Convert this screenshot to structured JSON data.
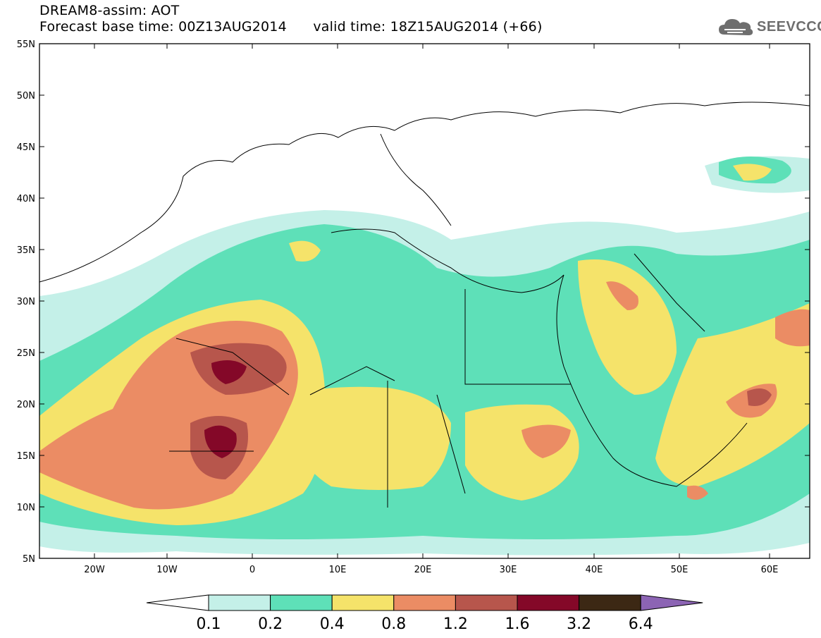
{
  "header": {
    "title": "DREAM8-assim: AOT",
    "base_label": "Forecast base time: 00Z13AUG2014",
    "valid_label": "valid time: 18Z15AUG2014 (+66)"
  },
  "logo": {
    "text": "SEEVCCC",
    "icon": "cloud-icon"
  },
  "map": {
    "lon_ticks": [
      "20W",
      "10W",
      "0",
      "10E",
      "20E",
      "30E",
      "40E",
      "50E",
      "60E"
    ],
    "lat_ticks": [
      "55N",
      "50N",
      "45N",
      "40N",
      "35N",
      "30N",
      "25N",
      "20N",
      "15N",
      "10N",
      "5N"
    ]
  },
  "legend": {
    "colors": [
      "#ffffff",
      "#c4f0e8",
      "#5ee0b8",
      "#f5e36a",
      "#eb8c64",
      "#b7564c",
      "#840828",
      "#3c2814",
      "#8c64b4"
    ],
    "labels": [
      "0.1",
      "0.2",
      "0.4",
      "0.8",
      "1.2",
      "1.6",
      "3.2",
      "6.4"
    ]
  }
}
